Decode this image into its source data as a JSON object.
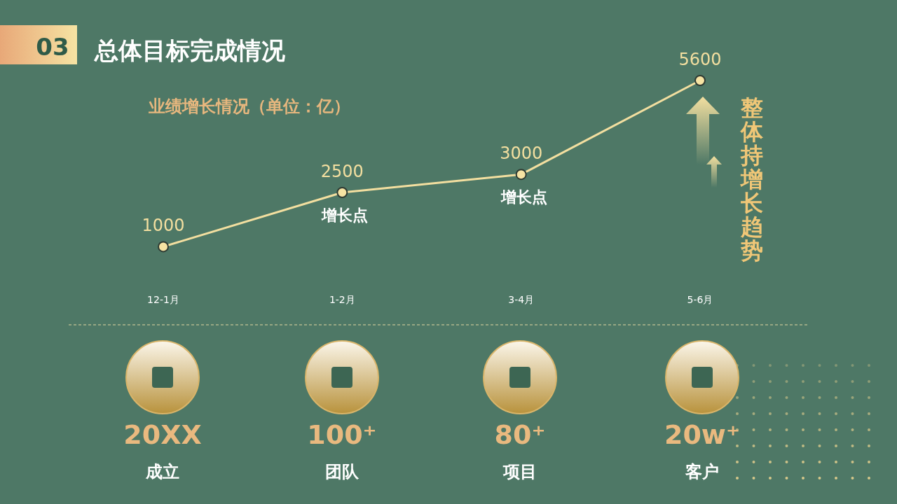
{
  "chart_data": [
    {
      "type": "line",
      "title": "总体目标完成情况",
      "subtitle": "业绩增长情况（单位：亿）",
      "categories": [
        "12-1月",
        "1-2月",
        "3-4月",
        "5-6月"
      ],
      "series": [
        {
          "color": "#f3dfa0",
          "values": [
            1000,
            2500,
            3000,
            5600
          ]
        }
      ],
      "data_labels": true,
      "marker": "circle",
      "line_style": "solid",
      "annotations": [
        "03",
        {
          "text": "增长点",
          "x": "1-2月",
          "y": 2500
        },
        {
          "text": "增长点",
          "x": "3-4月",
          "y": 3000
        },
        "整体持增长趋势"
      ]
    },
    {
      "type": "other",
      "annotations": [
        "20XX",
        "成立",
        "100⁺",
        "团队",
        "80⁺",
        "项目",
        "20w⁺",
        "客户"
      ]
    }
  ]
}
